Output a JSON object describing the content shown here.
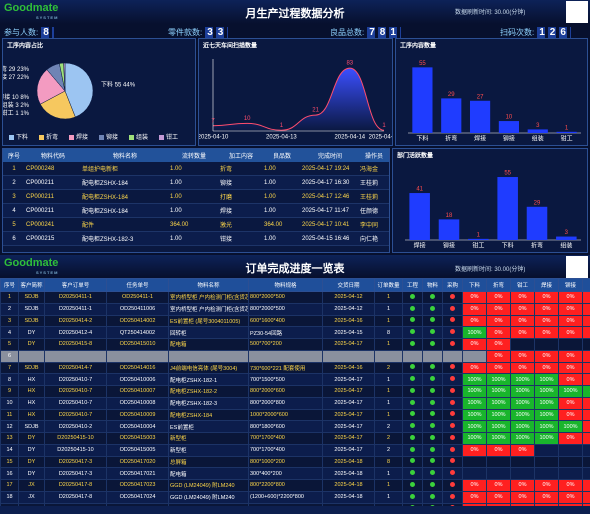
{
  "header": {
    "logo": "Goodmate",
    "logo_sub": "SYSTEM",
    "title": "月生产过程数据分析",
    "refresh": "数据刷新时间: 30.00(分钟)"
  },
  "stats": [
    {
      "label": "参与人数:",
      "value": 8
    },
    {
      "label": "零件款数:",
      "value": 33
    },
    {
      "label": "良品总数:",
      "value": 781
    },
    {
      "label": "扫码次数:",
      "value": 126
    }
  ],
  "chart_data": [
    {
      "type": "pie",
      "title": "工序内容占比",
      "categories": [
        "下料",
        "折弯",
        "焊接",
        "铆接",
        "组装",
        "钳工"
      ],
      "values": [
        55,
        29,
        27,
        10,
        3,
        1
      ],
      "value_labels": [
        "44%",
        "23%",
        "22%",
        "8%",
        "2%",
        "1%"
      ],
      "colors": [
        "#9cc5f2",
        "#f6c85f",
        "#f39bc1",
        "#6f84b5",
        "#9fe07a",
        "#c49ad6"
      ]
    },
    {
      "type": "line",
      "title": "近七天车间扫描数量",
      "categories": [
        "2025-04-10",
        null,
        "2025-04-13",
        null,
        "2025-04-14",
        "2025-04-17"
      ],
      "values": [
        7,
        10,
        1,
        21,
        83,
        1
      ],
      "ylim": [
        0,
        95
      ],
      "color": "#ff4d6d"
    },
    {
      "type": "bar",
      "title": "工序内容数量",
      "categories": [
        "下料",
        "折弯",
        "焊接",
        "铆接",
        "组装",
        "钳工"
      ],
      "values": [
        55,
        29,
        27,
        10,
        3,
        1
      ],
      "ylim": [
        0,
        62
      ],
      "color": "#1f3cff"
    },
    {
      "type": "bar",
      "title": "部门活跃数量",
      "categories": [
        "焊接",
        "铆接",
        "钳工",
        "下料",
        "折弯",
        "组装"
      ],
      "values": [
        41,
        18,
        1,
        55,
        29,
        3
      ],
      "ylim": [
        0,
        62
      ],
      "color": "#1f3cff"
    }
  ],
  "material_table": {
    "columns": [
      "序号",
      "物料代码",
      "物料名称",
      "流转数量",
      "加工内容",
      "良品数",
      "完成时间",
      "操作员"
    ],
    "rows": [
      [
        "1",
        "CP000248",
        "单组护电新柜",
        "1.00",
        "折弯",
        "1.00",
        "2025-04-17 19:24",
        "冯海金"
      ],
      [
        "2",
        "CP000211",
        "配电柜ZSHX-184",
        "1.00",
        "铆接",
        "1.00",
        "2025-04-17 16:30",
        "王桂莉"
      ],
      [
        "3",
        "CP000211",
        "配电柜ZSHX-184",
        "1.00",
        "打磨",
        "1.00",
        "2025-04-17 12:46",
        "王桂莉"
      ],
      [
        "4",
        "CP000211",
        "配电柜ZSHX-184",
        "1.00",
        "焊接",
        "1.00",
        "2025-04-17 11:47",
        "任颜德"
      ],
      [
        "5",
        "CP000241",
        "配件",
        "364.00",
        "激光",
        "364.00",
        "2025-04-17 10:41",
        "李中同"
      ],
      [
        "6",
        "CP000215",
        "配电柜ZSHX-182-3",
        "1.00",
        "钳接",
        "1.00",
        "2025-04-15 16:46",
        "向仁艳"
      ]
    ]
  },
  "order_board": {
    "logo": "Goodmate",
    "logo_sub": "SYSTEM",
    "title": "订单完成进度一览表",
    "refresh": "数据刷新时间: 30.00(分钟)",
    "columns": [
      "序号",
      "客户简称",
      "客户订单号",
      "任务单号",
      "物料名称",
      "物料规格",
      "交货日期",
      "订单数量",
      "工程",
      "物料",
      "采购",
      "下料",
      "折弯",
      "钳工",
      "焊接",
      "铆接",
      "组装"
    ],
    "rows": [
      [
        "1",
        "SDJB",
        "D20250411-1",
        "OD250411-1",
        "室内桥型柜 户内检测门柜(含货芯)",
        "800*2000*500",
        "2025-04-12",
        "1"
      ],
      [
        "2",
        "SDJB",
        "D20250411-1",
        "OD250411006",
        "室内桥型柜 户内检测门柜(含货芯)",
        "800*2000*500",
        "2025-04-12",
        "1"
      ],
      [
        "3",
        "SDJB",
        "D20250414-2",
        "OD250414002",
        "ES前置柜 (尾号3004011005)",
        "600*1600*400",
        "2025-04-16",
        "1"
      ],
      [
        "4",
        "DY",
        "D20250412-4",
        "QT250414002",
        "回转柜",
        "PZ30-54回路",
        "2025-04-15",
        "8"
      ],
      [
        "5",
        "DY",
        "D20250415-8",
        "OD250415010",
        "配电箱",
        "500*700*200",
        "2025-04-17",
        "1"
      ],
      [
        "6"
      ],
      [
        "7",
        "SDJB",
        "D20250414-7",
        "OD250414016",
        "J4前端电信亮体 (尾号3004)",
        "730*600*221 配套使用",
        "2025-04-16",
        "2"
      ],
      [
        "8",
        "HX",
        "D20250410-7",
        "OD250410006",
        "配电柜ZSHX-182-1",
        "700*1500*500",
        "2025-04-17",
        "1"
      ],
      [
        "9",
        "HX",
        "D20250410-7",
        "OD250410007",
        "配电柜ZSHX-182-2",
        "800*2000*600",
        "2025-04-17",
        "1"
      ],
      [
        "10",
        "HX",
        "D20250410-7",
        "OD250410008",
        "配电柜ZSHX-182-3",
        "800*2000*800",
        "2025-04-17",
        "1"
      ],
      [
        "11",
        "HX",
        "D20250410-7",
        "OD250410009",
        "配电柜ZSHX-184",
        "1000*2000*600",
        "2025-04-17",
        "1"
      ],
      [
        "12",
        "SDJB",
        "D20250410-2",
        "OD250410004",
        "ES前置柜",
        "800*1800*600",
        "2025-04-17",
        "2"
      ],
      [
        "13",
        "DY",
        "D20250415-10",
        "OD250415003",
        "新型柜",
        "700*1700*400",
        "2025-04-17",
        "2"
      ],
      [
        "14",
        "DY",
        "D20250415-10",
        "OD250415005",
        "新型柜",
        "700*1700*400",
        "2025-04-17",
        "2"
      ],
      [
        "15",
        "DY",
        "D20250417-3",
        "OD250417020",
        "总屏箱",
        "800*1000*200",
        "2025-04-18",
        "8"
      ],
      [
        "16",
        "DY",
        "D20250417-3",
        "OD250417021",
        "配电箱",
        "300*400*200",
        "2025-04-18",
        "1"
      ],
      [
        "17",
        "JX",
        "D20250417-8",
        "OD250417023",
        "GGD (LM24049) 附LM240",
        "800*2200*800",
        "2025-04-18",
        "1"
      ],
      [
        "18",
        "JX",
        "D20250417-8",
        "OD250417024",
        "GGD (LM24049) 附LM240",
        "(1200+600)*2200*800",
        "2025-04-18",
        "1"
      ],
      [
        "19",
        "DY",
        "D20250417-18",
        "OD250417032",
        "配电箱",
        "300*400*200",
        "2025-04-18",
        "2"
      ],
      [
        "20",
        "DY",
        "D20250414-3",
        "QT250414012",
        "配电箱",
        "(1000+1000+1000)*2200*8",
        "2025-04-18",
        "1"
      ]
    ],
    "progress": [
      [
        "0%",
        "0%",
        "0%",
        "0%",
        "0%",
        "0%"
      ],
      [
        "0%",
        "0%",
        "0%",
        "0%",
        "0%",
        "0%"
      ],
      [
        "0%",
        "0%",
        "0%",
        "0%",
        "0%",
        "0%"
      ],
      [
        "100%",
        "0%",
        "0%",
        "0%",
        "0%",
        "0%"
      ],
      [
        "0%",
        "0%",
        null,
        null,
        null,
        null
      ],
      [
        null,
        "0%",
        "0%",
        "0%",
        "0%",
        "0%"
      ],
      [
        "0%",
        "0%",
        "0%",
        "0%",
        "0%",
        "0%"
      ],
      [
        "100%",
        "100%",
        "100%",
        "100%",
        "0%",
        "0%"
      ],
      [
        "100%",
        "100%",
        "100%",
        "100%",
        "100%",
        "100%"
      ],
      [
        "100%",
        "100%",
        "100%",
        "100%",
        "0%",
        "0%"
      ],
      [
        "100%",
        "100%",
        "100%",
        "100%",
        "0%",
        "0%"
      ],
      [
        "100%",
        "100%",
        "100%",
        "100%",
        "100%",
        "0%"
      ],
      [
        "100%",
        "100%",
        "100%",
        "100%",
        "0%",
        "0%"
      ],
      [
        "0%",
        "0%",
        "0%",
        null,
        null,
        null
      ],
      [
        null,
        null,
        null,
        null,
        null,
        null
      ],
      [
        null,
        null,
        null,
        null,
        null,
        null
      ],
      [
        "0%",
        "0%",
        "0%",
        "0%",
        "0%",
        "0%"
      ],
      [
        "0%",
        "0%",
        "0%",
        "0%",
        "0%",
        "0%"
      ],
      [
        "0%",
        "0%",
        "0%",
        "0%",
        "0%",
        "0%"
      ],
      [
        "50%",
        "0%",
        "0%",
        "0%",
        "0%",
        "0%"
      ]
    ]
  }
}
